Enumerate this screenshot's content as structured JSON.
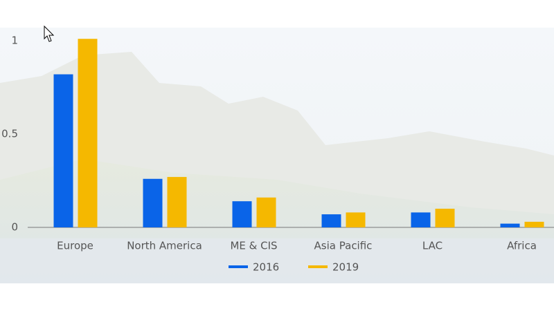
{
  "chart_data": {
    "type": "bar",
    "categories": [
      "Europe",
      "North America",
      "ME & CIS",
      "Asia Pacific",
      "LAC",
      "Africa"
    ],
    "series": [
      {
        "name": "2016",
        "color": "#0a64e8",
        "values": [
          0.82,
          0.26,
          0.14,
          0.07,
          0.08,
          0.02
        ]
      },
      {
        "name": "2019",
        "color": "#f5b800",
        "values": [
          1.01,
          0.27,
          0.16,
          0.08,
          0.1,
          0.03
        ]
      }
    ],
    "ylim": [
      0,
      1.07
    ],
    "yticks": [
      0,
      0.5,
      1
    ]
  }
}
